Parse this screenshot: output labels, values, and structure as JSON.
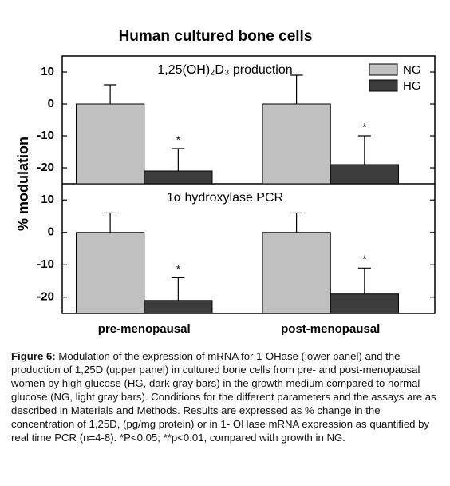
{
  "figure": {
    "title": "Human cultured bone cells",
    "ylabel": "% modulation"
  },
  "chart_data": [
    {
      "type": "bar",
      "title": "1,25(OH)₂D₃ production",
      "series": [
        {
          "name": "NG",
          "color": "#c0c0c0",
          "values": [
            0,
            0
          ],
          "errors": [
            6,
            9
          ]
        },
        {
          "name": "HG",
          "color": "#3c3c3c",
          "values": [
            -21,
            -19
          ],
          "errors": [
            7,
            9
          ],
          "annotations": [
            "*",
            "*"
          ]
        }
      ],
      "ylim": [
        -25,
        15
      ],
      "yticks": [
        -20,
        -10,
        0,
        10
      ],
      "legend": "top-right"
    },
    {
      "type": "bar",
      "title": "1α hydroxylase PCR",
      "categories": [
        "pre-menopausal",
        "post-menopausal"
      ],
      "series": [
        {
          "color": "#c0c0c0",
          "values": [
            0,
            0
          ],
          "errors": [
            6,
            6
          ]
        },
        {
          "color": "#3c3c3c",
          "values": [
            -21,
            -19
          ],
          "errors": [
            7,
            8
          ],
          "annotations": [
            "*",
            "*"
          ]
        }
      ],
      "ylim": [
        -25,
        15
      ],
      "yticks": [
        -20,
        -10,
        0,
        10
      ]
    }
  ],
  "caption": {
    "label": "Figure 6:",
    "text": "Modulation of the expression of mRNA for 1-OHase (lower panel) and the production of 1,25D (upper panel) in cultured bone cells from pre- and post-menopausal women by high glucose (HG, dark gray bars) in the growth medium compared to normal glucose (NG, light gray bars). Conditions for the different parameters and the assays are as described in Materials and Methods.  Results are expressed as % change in the concentration of 1,25D, (pg/mg protein) or in 1- OHase mRNA expression as quantified by real time PCR (n=4-8). *P<0.05; **p<0.01, compared with growth in NG."
  }
}
